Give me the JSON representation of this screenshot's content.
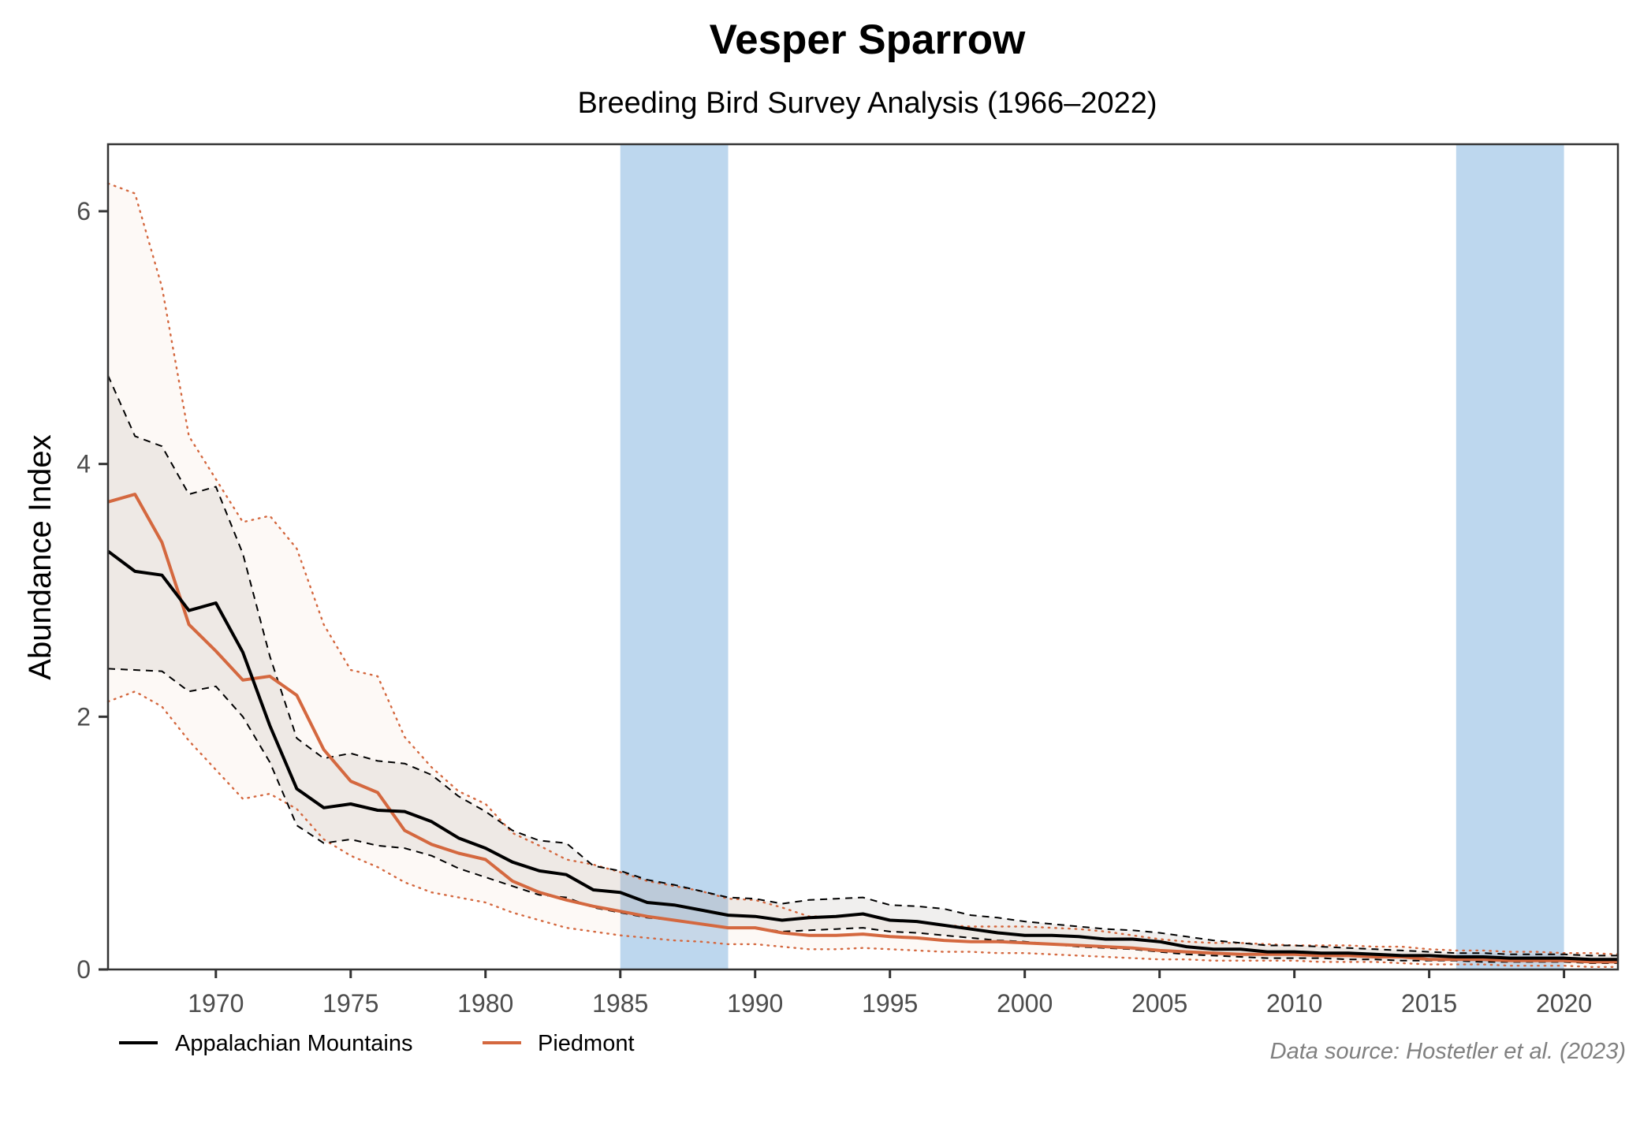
{
  "chart_data": {
    "type": "line",
    "title": "Vesper Sparrow",
    "subtitle": "Breeding Bird Survey Analysis (1966–2022)",
    "xlabel": "",
    "ylabel": "Abundance Index",
    "xlim": [
      1966,
      2022
    ],
    "ylim": [
      0,
      6.5
    ],
    "x_ticks": [
      1970,
      1975,
      1980,
      1985,
      1990,
      1995,
      2000,
      2005,
      2010,
      2015,
      2020
    ],
    "y_ticks": [
      0,
      2,
      4,
      6
    ],
    "grid": false,
    "legend": {
      "position": "bottom-left",
      "entries": [
        "Appalachian Mountains",
        "Piedmont"
      ]
    },
    "caption": "Data source: Hostetler et al. (2023)",
    "shaded_periods": [
      {
        "start": 1985,
        "end": 1989,
        "color": "#bdd7ee"
      },
      {
        "start": 2016,
        "end": 2020,
        "color": "#bdd7ee"
      }
    ],
    "x": [
      1966,
      1967,
      1968,
      1969,
      1970,
      1971,
      1972,
      1973,
      1974,
      1975,
      1976,
      1977,
      1978,
      1979,
      1980,
      1981,
      1982,
      1983,
      1984,
      1985,
      1986,
      1987,
      1988,
      1989,
      1990,
      1991,
      1992,
      1993,
      1994,
      1995,
      1996,
      1997,
      1998,
      1999,
      2000,
      2001,
      2002,
      2003,
      2004,
      2005,
      2006,
      2007,
      2008,
      2009,
      2010,
      2011,
      2012,
      2013,
      2014,
      2015,
      2016,
      2017,
      2018,
      2019,
      2020,
      2021,
      2022
    ],
    "series": [
      {
        "name": "Appalachian Mountains",
        "color": "#000000",
        "ribbon_color": "#5a4a44",
        "bound_style": "dashed",
        "values": [
          3.31,
          3.15,
          3.12,
          2.84,
          2.9,
          2.51,
          1.93,
          1.43,
          1.28,
          1.31,
          1.26,
          1.25,
          1.17,
          1.04,
          0.96,
          0.85,
          0.78,
          0.75,
          0.63,
          0.61,
          0.53,
          0.51,
          0.47,
          0.43,
          0.42,
          0.39,
          0.41,
          0.42,
          0.44,
          0.39,
          0.38,
          0.35,
          0.32,
          0.29,
          0.27,
          0.27,
          0.26,
          0.24,
          0.24,
          0.22,
          0.18,
          0.16,
          0.16,
          0.14,
          0.14,
          0.13,
          0.13,
          0.12,
          0.11,
          0.11,
          0.1,
          0.1,
          0.09,
          0.09,
          0.09,
          0.08,
          0.08
        ],
        "upper": [
          4.7,
          4.22,
          4.14,
          3.76,
          3.82,
          3.29,
          2.48,
          1.83,
          1.67,
          1.71,
          1.65,
          1.63,
          1.54,
          1.37,
          1.25,
          1.1,
          1.02,
          1.0,
          0.82,
          0.78,
          0.71,
          0.67,
          0.62,
          0.57,
          0.56,
          0.52,
          0.55,
          0.56,
          0.57,
          0.51,
          0.5,
          0.48,
          0.43,
          0.41,
          0.38,
          0.36,
          0.34,
          0.32,
          0.31,
          0.29,
          0.26,
          0.23,
          0.21,
          0.19,
          0.19,
          0.18,
          0.17,
          0.16,
          0.15,
          0.14,
          0.13,
          0.13,
          0.12,
          0.12,
          0.12,
          0.11,
          0.11
        ],
        "lower": [
          2.38,
          2.37,
          2.36,
          2.2,
          2.24,
          2.0,
          1.64,
          1.14,
          1.0,
          1.03,
          0.98,
          0.96,
          0.9,
          0.8,
          0.73,
          0.66,
          0.59,
          0.57,
          0.49,
          0.45,
          0.41,
          0.39,
          0.36,
          0.33,
          0.33,
          0.3,
          0.31,
          0.32,
          0.33,
          0.3,
          0.29,
          0.27,
          0.25,
          0.23,
          0.22,
          0.2,
          0.18,
          0.17,
          0.16,
          0.14,
          0.12,
          0.11,
          0.1,
          0.09,
          0.09,
          0.09,
          0.08,
          0.08,
          0.07,
          0.07,
          0.07,
          0.06,
          0.06,
          0.06,
          0.06,
          0.05,
          0.05
        ]
      },
      {
        "name": "Piedmont",
        "color": "#d4683f",
        "ribbon_color": "#f5d9cc",
        "bound_style": "dotted",
        "values": [
          3.7,
          3.76,
          3.38,
          2.73,
          2.52,
          2.29,
          2.32,
          2.17,
          1.74,
          1.49,
          1.4,
          1.1,
          0.99,
          0.92,
          0.87,
          0.7,
          0.61,
          0.55,
          0.5,
          0.46,
          0.42,
          0.39,
          0.36,
          0.33,
          0.33,
          0.29,
          0.27,
          0.27,
          0.28,
          0.26,
          0.25,
          0.23,
          0.22,
          0.22,
          0.21,
          0.2,
          0.19,
          0.18,
          0.17,
          0.15,
          0.14,
          0.13,
          0.12,
          0.12,
          0.12,
          0.11,
          0.11,
          0.1,
          0.1,
          0.08,
          0.08,
          0.08,
          0.07,
          0.07,
          0.07,
          0.06,
          0.06
        ],
        "upper": [
          6.22,
          6.14,
          5.4,
          4.22,
          3.88,
          3.54,
          3.59,
          3.33,
          2.73,
          2.37,
          2.32,
          1.84,
          1.6,
          1.41,
          1.31,
          1.08,
          0.98,
          0.87,
          0.83,
          0.77,
          0.7,
          0.66,
          0.62,
          0.56,
          0.55,
          0.49,
          0.42,
          0.42,
          0.44,
          0.39,
          0.38,
          0.35,
          0.34,
          0.34,
          0.34,
          0.33,
          0.32,
          0.3,
          0.27,
          0.24,
          0.22,
          0.21,
          0.21,
          0.2,
          0.19,
          0.19,
          0.19,
          0.18,
          0.18,
          0.16,
          0.15,
          0.15,
          0.14,
          0.14,
          0.13,
          0.13,
          0.12
        ],
        "lower": [
          2.12,
          2.2,
          2.08,
          1.81,
          1.58,
          1.35,
          1.39,
          1.27,
          1.03,
          0.9,
          0.81,
          0.69,
          0.61,
          0.57,
          0.53,
          0.45,
          0.39,
          0.33,
          0.3,
          0.27,
          0.25,
          0.23,
          0.22,
          0.2,
          0.2,
          0.18,
          0.16,
          0.16,
          0.17,
          0.16,
          0.15,
          0.14,
          0.14,
          0.13,
          0.13,
          0.12,
          0.11,
          0.1,
          0.09,
          0.08,
          0.08,
          0.07,
          0.07,
          0.07,
          0.07,
          0.06,
          0.06,
          0.06,
          0.05,
          0.04,
          0.04,
          0.04,
          0.03,
          0.03,
          0.03,
          0.02,
          0.02
        ]
      }
    ]
  }
}
